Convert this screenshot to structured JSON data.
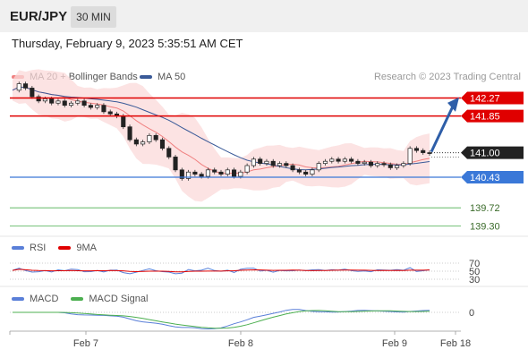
{
  "header": {
    "symbol": "EUR/JPY",
    "timeframe": "30 MIN",
    "datetime": "Thursday, February 9, 2023 5:35:51 AM CET"
  },
  "legend": {
    "ma20_label": "MA 20 + Bollinger Bands",
    "ma50_label": "MA 50",
    "research": "Research © 2023 Trading Central"
  },
  "rsi_legend": {
    "rsi": "RSI",
    "ma": "9MA"
  },
  "macd_legend": {
    "macd": "MACD",
    "signal": "MACD Signal"
  },
  "colors": {
    "ma20": "#f08080",
    "ma50": "#3a5a98",
    "resistance": "#e00000",
    "support": "#3a78d8",
    "target": "#4caf50",
    "arrow": "#2e5ea8",
    "candle_up": "#2f6b2f",
    "candle_down": "#b22222",
    "rsi": "#5a7fd8",
    "macd_signal": "#4caf50"
  },
  "chart_data": {
    "type": "candlestick",
    "symbol": "EUR/JPY",
    "timeframe": "30 MIN",
    "x_ticks": [
      "Feb 7",
      "Feb 8",
      "Feb 9",
      "Feb 18"
    ],
    "y_range": [
      139.1,
      142.55
    ],
    "current_price": "141.00",
    "levels": [
      {
        "value": 142.27,
        "label": "142.27",
        "kind": "resistance"
      },
      {
        "value": 141.85,
        "label": "141.85",
        "kind": "resistance"
      },
      {
        "value": 141.0,
        "label": "141.00",
        "kind": "current"
      },
      {
        "value": 140.43,
        "label": "140.43",
        "kind": "support"
      },
      {
        "value": 139.72,
        "label": "139.72",
        "kind": "target"
      },
      {
        "value": 139.3,
        "label": "139.30",
        "kind": "target"
      }
    ],
    "forecast_arrow": {
      "from": 141.02,
      "to": 142.2
    },
    "price_path": [
      142.45,
      142.6,
      142.5,
      142.3,
      142.2,
      142.25,
      142.15,
      142.2,
      142.1,
      142.15,
      142.2,
      142.1,
      142.05,
      142.1,
      141.95,
      141.9,
      141.85,
      141.6,
      141.3,
      141.2,
      141.25,
      141.4,
      141.3,
      141.1,
      140.9,
      140.6,
      140.4,
      140.55,
      140.5,
      140.45,
      140.6,
      140.55,
      140.5,
      140.6,
      140.45,
      140.55,
      140.7,
      140.85,
      140.75,
      140.8,
      140.7,
      140.75,
      140.7,
      140.6,
      140.55,
      140.5,
      140.6,
      140.75,
      140.8,
      140.85,
      140.8,
      140.85,
      140.8,
      140.75,
      140.78,
      140.7,
      140.75,
      140.72,
      140.65,
      140.7,
      140.75,
      141.1,
      141.05,
      141.0,
      140.98
    ],
    "rsi_levels": [
      "70",
      "50",
      "30"
    ],
    "macd_levels": [
      "0"
    ]
  }
}
